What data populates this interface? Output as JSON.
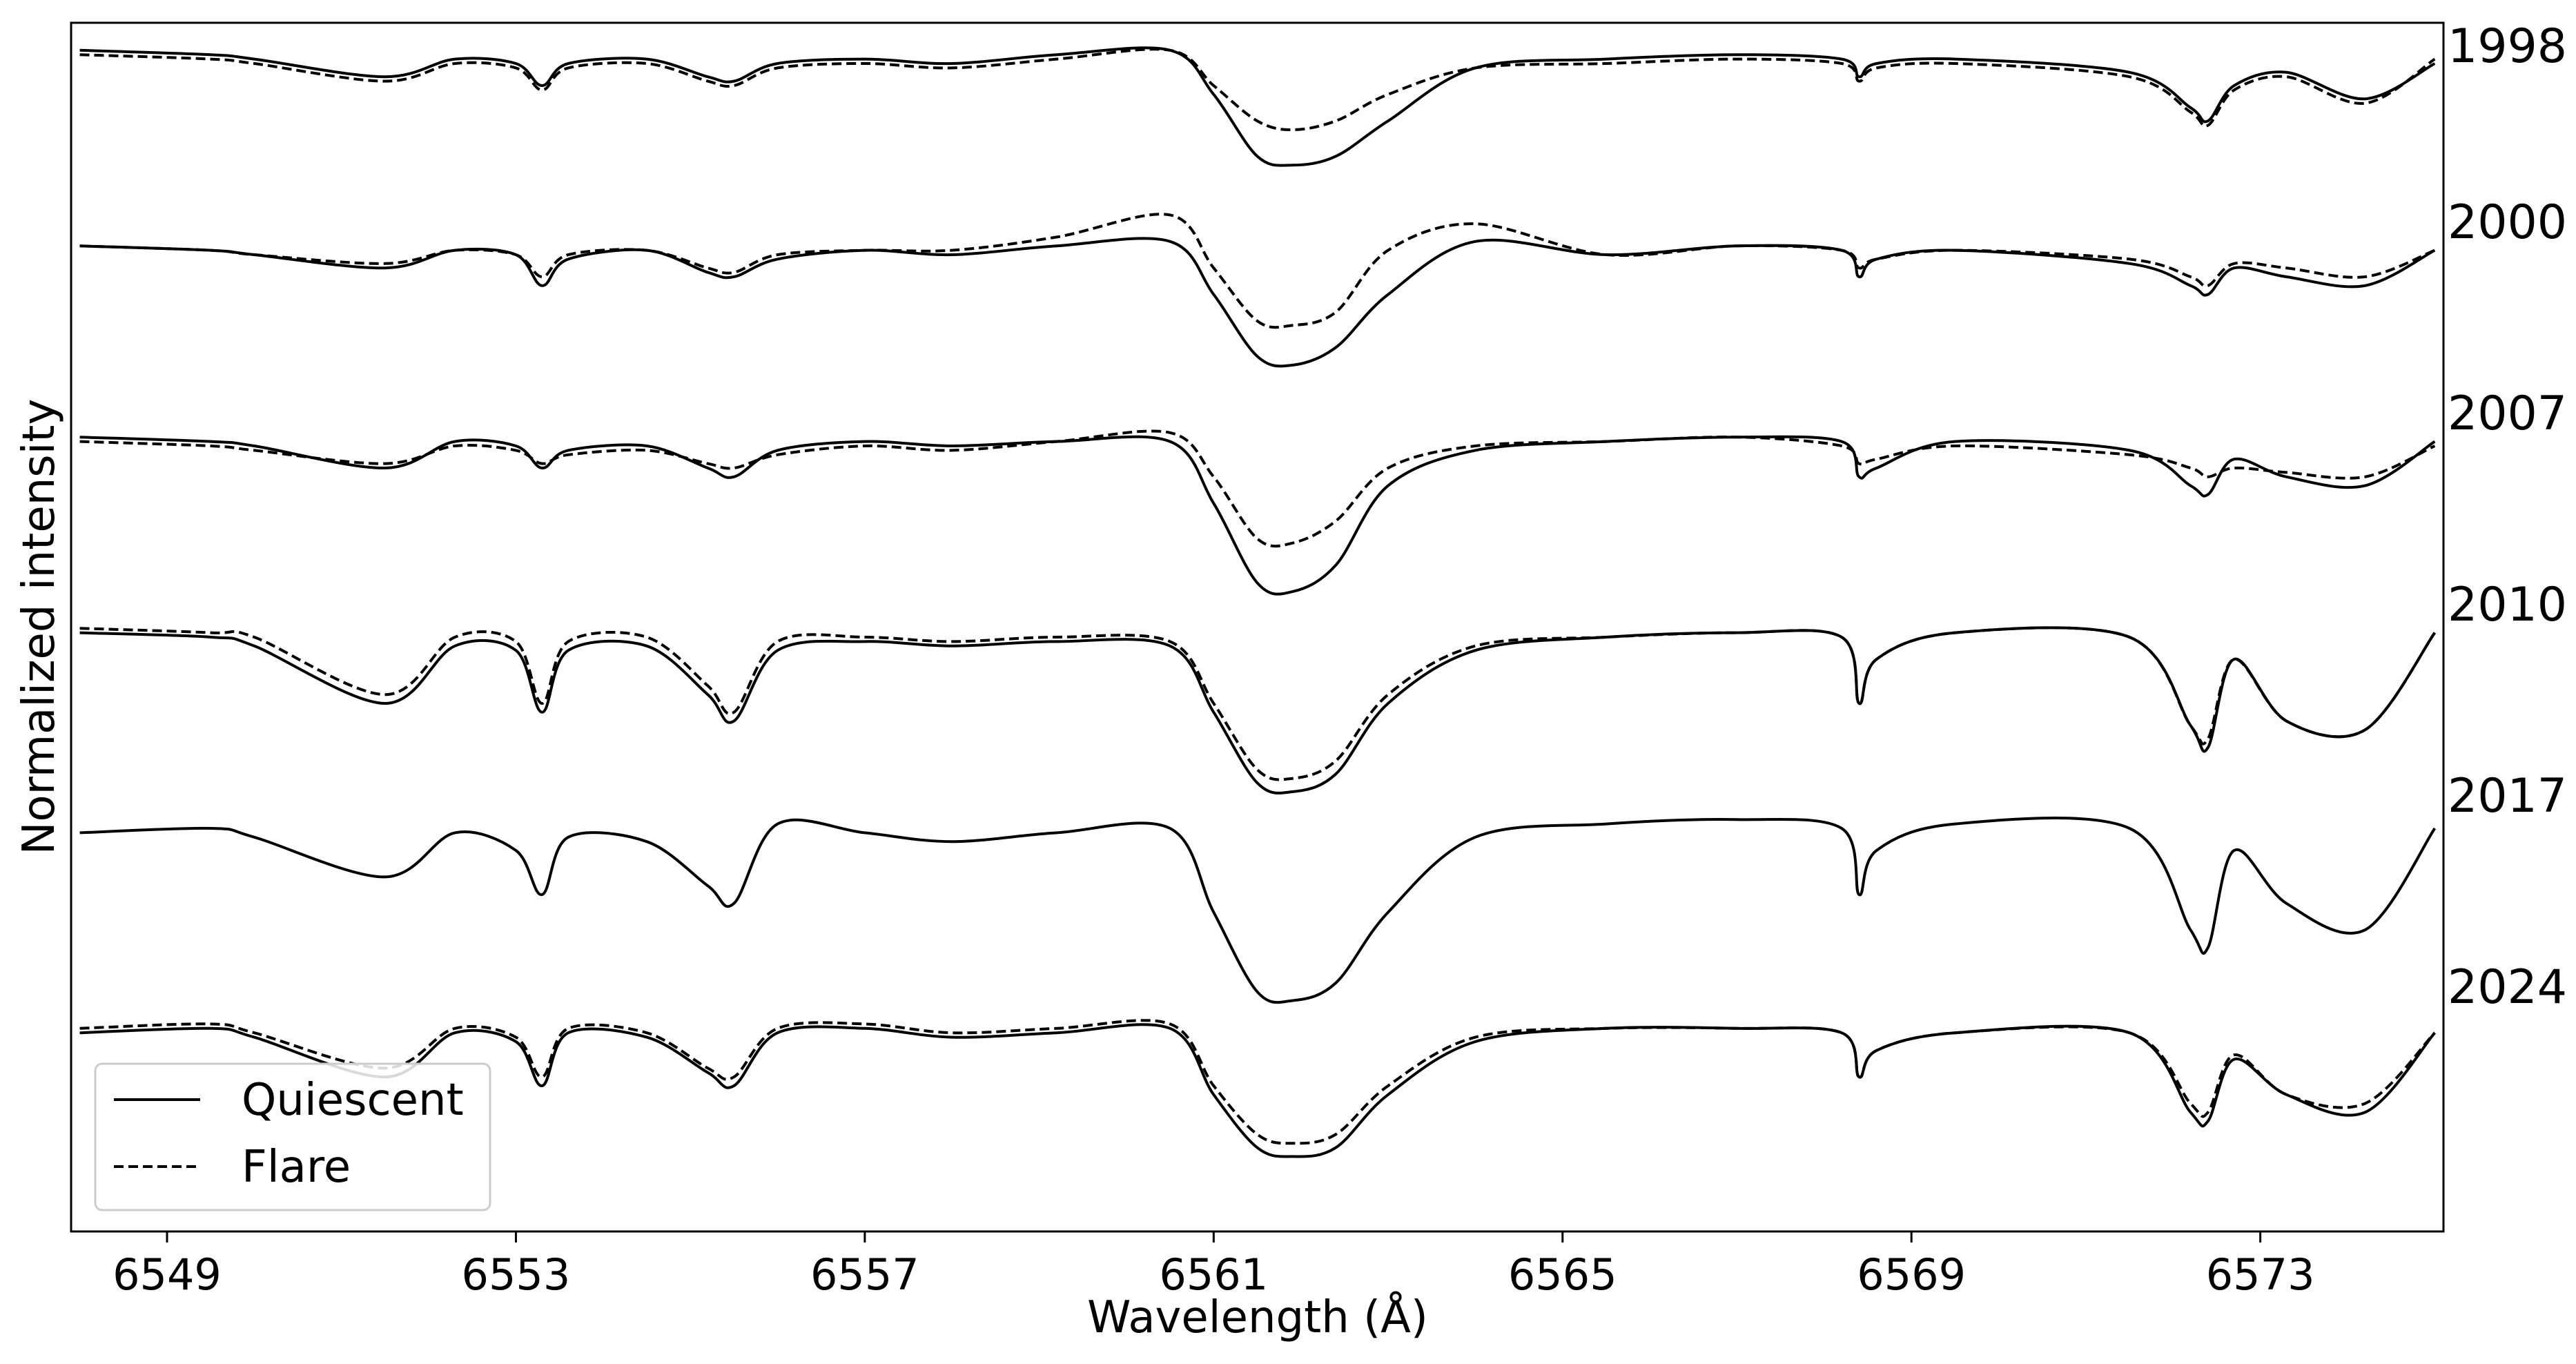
{
  "chart_data": {
    "type": "line",
    "title": "",
    "xlabel": "Wavelength (Å)",
    "ylabel": "Normalized intensity",
    "xlim": [
      6547.9,
      6575.1
    ],
    "xticks": [
      6549,
      6553,
      6557,
      6561,
      6565,
      6569,
      6573
    ],
    "y_ticks_shown": false,
    "grid": false,
    "legend": {
      "position": "bottom-left",
      "entries": [
        {
          "label": "Quiescent",
          "style": "solid"
        },
        {
          "label": "Flare",
          "style": "dashed"
        }
      ]
    },
    "line_color": "#000000",
    "panels": [
      {
        "year": "1998",
        "has_flare": true,
        "quiescent": {
          "x": [
            6548,
            6549.5,
            6550,
            6551.5,
            6552.3,
            6553,
            6553.3,
            6553.6,
            6554.5,
            6555.2,
            6555.5,
            6556,
            6557,
            6558,
            6559.2,
            6560.5,
            6561,
            6561.5,
            6561.9,
            6562.4,
            6563,
            6564,
            6565.5,
            6567,
            6568.2,
            6568.4,
            6568.6,
            6569.5,
            6571.5,
            6572.2,
            6572.4,
            6572.7,
            6573.3,
            6574.2,
            6575
          ],
          "y": [
            0.98,
            0.97,
            0.96,
            0.92,
            0.96,
            0.95,
            0.9,
            0.95,
            0.96,
            0.92,
            0.91,
            0.95,
            0.96,
            0.95,
            0.97,
            0.98,
            0.88,
            0.74,
            0.72,
            0.74,
            0.82,
            0.94,
            0.96,
            0.97,
            0.96,
            0.92,
            0.95,
            0.96,
            0.93,
            0.85,
            0.82,
            0.9,
            0.93,
            0.87,
            0.95
          ]
        },
        "flare": {
          "x": [
            6548,
            6549.5,
            6550,
            6551.5,
            6552.3,
            6553,
            6553.3,
            6553.6,
            6554.5,
            6555.2,
            6555.5,
            6556,
            6557,
            6558,
            6559.2,
            6560.5,
            6561,
            6561.5,
            6561.9,
            6562.4,
            6563,
            6564,
            6565.5,
            6567,
            6568.2,
            6568.4,
            6568.6,
            6569.5,
            6571.5,
            6572.2,
            6572.4,
            6572.7,
            6573.3,
            6574.2,
            6575
          ],
          "y": [
            0.97,
            0.96,
            0.95,
            0.91,
            0.95,
            0.94,
            0.89,
            0.94,
            0.95,
            0.91,
            0.9,
            0.94,
            0.95,
            0.94,
            0.96,
            0.98,
            0.9,
            0.82,
            0.8,
            0.82,
            0.88,
            0.94,
            0.95,
            0.96,
            0.95,
            0.91,
            0.94,
            0.95,
            0.92,
            0.84,
            0.81,
            0.89,
            0.92,
            0.86,
            0.96
          ]
        }
      },
      {
        "year": "2000",
        "has_flare": true,
        "quiescent": {
          "x": [
            6548,
            6549.5,
            6550,
            6551.5,
            6552.3,
            6553,
            6553.3,
            6553.6,
            6554.5,
            6555.2,
            6555.5,
            6556,
            6557,
            6558,
            6559.2,
            6560.5,
            6561,
            6561.5,
            6561.9,
            6562.4,
            6563,
            6564,
            6565.5,
            6567,
            6568.2,
            6568.4,
            6568.6,
            6569.5,
            6571.5,
            6572.2,
            6572.4,
            6572.7,
            6573.3,
            6574.2,
            6575
          ],
          "y": [
            0.97,
            0.96,
            0.95,
            0.92,
            0.96,
            0.95,
            0.88,
            0.94,
            0.96,
            0.91,
            0.9,
            0.94,
            0.96,
            0.95,
            0.97,
            0.98,
            0.86,
            0.72,
            0.7,
            0.74,
            0.86,
            0.98,
            0.95,
            0.97,
            0.96,
            0.9,
            0.94,
            0.96,
            0.93,
            0.88,
            0.86,
            0.92,
            0.9,
            0.88,
            0.96
          ]
        },
        "flare": {
          "x": [
            6548,
            6549.5,
            6550,
            6551.5,
            6552.3,
            6553,
            6553.3,
            6553.6,
            6554.5,
            6555.2,
            6555.5,
            6556,
            6557,
            6558,
            6559.2,
            6560.5,
            6561,
            6561.5,
            6561.9,
            6562.4,
            6563,
            6564,
            6565.5,
            6567,
            6568.2,
            6568.4,
            6568.6,
            6569.5,
            6571.5,
            6572.2,
            6572.4,
            6572.7,
            6573.3,
            6574.2,
            6575
          ],
          "y": [
            0.97,
            0.96,
            0.95,
            0.93,
            0.96,
            0.95,
            0.9,
            0.95,
            0.96,
            0.92,
            0.91,
            0.95,
            0.96,
            0.96,
            0.99,
            1.04,
            0.92,
            0.8,
            0.79,
            0.82,
            0.96,
            1.02,
            0.95,
            0.97,
            0.96,
            0.92,
            0.94,
            0.96,
            0.94,
            0.9,
            0.88,
            0.93,
            0.92,
            0.9,
            0.96
          ]
        }
      },
      {
        "year": "2007",
        "has_flare": true,
        "quiescent": {
          "x": [
            6548,
            6549.5,
            6550,
            6551.5,
            6552.3,
            6553,
            6553.3,
            6553.6,
            6554.5,
            6555.2,
            6555.5,
            6556,
            6557,
            6558,
            6559.2,
            6560.5,
            6561,
            6561.5,
            6561.9,
            6562.4,
            6563,
            6564,
            6565.5,
            6567,
            6568.2,
            6568.4,
            6568.6,
            6569.5,
            6571.5,
            6572.2,
            6572.4,
            6572.7,
            6573.3,
            6574.2,
            6575
          ],
          "y": [
            0.97,
            0.96,
            0.95,
            0.9,
            0.96,
            0.95,
            0.9,
            0.94,
            0.95,
            0.9,
            0.88,
            0.94,
            0.96,
            0.95,
            0.96,
            0.96,
            0.82,
            0.64,
            0.62,
            0.68,
            0.86,
            0.94,
            0.96,
            0.97,
            0.96,
            0.88,
            0.9,
            0.96,
            0.94,
            0.86,
            0.84,
            0.92,
            0.88,
            0.86,
            0.96
          ]
        },
        "flare": {
          "x": [
            6548,
            6549.5,
            6550,
            6551.5,
            6552.3,
            6553,
            6553.3,
            6553.6,
            6554.5,
            6555.2,
            6555.5,
            6556,
            6557,
            6558,
            6559.2,
            6560.5,
            6561,
            6561.5,
            6561.9,
            6562.4,
            6563,
            6564,
            6565.5,
            6567,
            6568.2,
            6568.4,
            6568.6,
            6569.5,
            6571.5,
            6572.2,
            6572.4,
            6572.7,
            6573.3,
            6574.2,
            6575
          ],
          "y": [
            0.96,
            0.95,
            0.94,
            0.91,
            0.95,
            0.94,
            0.91,
            0.93,
            0.94,
            0.91,
            0.9,
            0.93,
            0.95,
            0.94,
            0.96,
            0.98,
            0.88,
            0.74,
            0.73,
            0.78,
            0.9,
            0.95,
            0.96,
            0.97,
            0.95,
            0.91,
            0.92,
            0.95,
            0.93,
            0.9,
            0.88,
            0.9,
            0.89,
            0.88,
            0.95
          ]
        }
      },
      {
        "year": "2010",
        "has_flare": true,
        "quiescent": {
          "x": [
            6548,
            6549.5,
            6550,
            6551.5,
            6552.3,
            6553,
            6553.3,
            6553.6,
            6554.5,
            6555.2,
            6555.5,
            6556,
            6557,
            6558,
            6559.2,
            6560.5,
            6561,
            6561.5,
            6561.9,
            6562.4,
            6563,
            6564,
            6565.5,
            6567,
            6568.2,
            6568.4,
            6568.6,
            6569.5,
            6571.5,
            6572.2,
            6572.4,
            6572.7,
            6573.3,
            6574.2,
            6575
          ],
          "y": [
            0.96,
            0.95,
            0.93,
            0.8,
            0.93,
            0.92,
            0.78,
            0.92,
            0.93,
            0.82,
            0.76,
            0.92,
            0.94,
            0.93,
            0.94,
            0.93,
            0.78,
            0.62,
            0.6,
            0.64,
            0.8,
            0.92,
            0.95,
            0.96,
            0.95,
            0.8,
            0.9,
            0.96,
            0.95,
            0.75,
            0.7,
            0.9,
            0.76,
            0.74,
            0.96
          ]
        },
        "flare": {
          "x": [
            6548,
            6549.5,
            6550,
            6551.5,
            6552.3,
            6553,
            6553.3,
            6553.6,
            6554.5,
            6555.2,
            6555.5,
            6556,
            6557,
            6558,
            6559.2,
            6560.5,
            6561,
            6561.5,
            6561.9,
            6562.4,
            6563,
            6564,
            6565.5,
            6567,
            6568.2,
            6568.4,
            6568.6,
            6569.5,
            6571.5,
            6572.2,
            6572.4,
            6572.7,
            6573.3,
            6574.2,
            6575
          ],
          "y": [
            0.97,
            0.96,
            0.95,
            0.82,
            0.95,
            0.94,
            0.8,
            0.94,
            0.95,
            0.84,
            0.78,
            0.94,
            0.95,
            0.94,
            0.95,
            0.94,
            0.8,
            0.65,
            0.63,
            0.67,
            0.82,
            0.93,
            0.95,
            0.96,
            0.95,
            0.8,
            0.9,
            0.96,
            0.95,
            0.75,
            0.72,
            0.9,
            0.76,
            0.74,
            0.96
          ]
        }
      },
      {
        "year": "2017",
        "has_flare": false,
        "quiescent": {
          "x": [
            6548,
            6549.5,
            6550,
            6551.5,
            6552.3,
            6553,
            6553.3,
            6553.6,
            6554.5,
            6555.2,
            6555.5,
            6556,
            6557,
            6558,
            6559.2,
            6560.5,
            6561,
            6561.5,
            6561.9,
            6562.4,
            6563,
            6564,
            6565.5,
            6567,
            6568.2,
            6568.4,
            6568.6,
            6569.5,
            6571.5,
            6572.2,
            6572.4,
            6572.7,
            6573.3,
            6574.2,
            6575
          ],
          "y": [
            0.94,
            0.95,
            0.93,
            0.84,
            0.94,
            0.9,
            0.8,
            0.93,
            0.92,
            0.82,
            0.78,
            0.96,
            0.94,
            0.92,
            0.94,
            0.95,
            0.76,
            0.58,
            0.56,
            0.6,
            0.76,
            0.93,
            0.96,
            0.97,
            0.95,
            0.8,
            0.9,
            0.96,
            0.95,
            0.72,
            0.68,
            0.9,
            0.78,
            0.72,
            0.95
          ]
        },
        "flare": null
      },
      {
        "year": "2024",
        "has_flare": true,
        "quiescent": {
          "x": [
            6548,
            6549.5,
            6550,
            6551.5,
            6552.3,
            6553,
            6553.3,
            6553.6,
            6554.5,
            6555.2,
            6555.5,
            6556,
            6557,
            6558,
            6559.2,
            6560.5,
            6561,
            6561.5,
            6561.9,
            6562.4,
            6563,
            6564,
            6565.5,
            6567,
            6568.2,
            6568.4,
            6568.6,
            6569.5,
            6571.5,
            6572.2,
            6572.4,
            6572.7,
            6573.3,
            6574.2,
            6575
          ],
          "y": [
            0.92,
            0.93,
            0.91,
            0.82,
            0.92,
            0.9,
            0.8,
            0.92,
            0.91,
            0.83,
            0.8,
            0.92,
            0.93,
            0.91,
            0.92,
            0.93,
            0.78,
            0.66,
            0.64,
            0.66,
            0.78,
            0.9,
            0.93,
            0.93,
            0.92,
            0.82,
            0.88,
            0.92,
            0.92,
            0.74,
            0.72,
            0.86,
            0.78,
            0.74,
            0.92
          ]
        },
        "flare": {
          "x": [
            6548,
            6549.5,
            6550,
            6551.5,
            6552.3,
            6553,
            6553.3,
            6553.6,
            6554.5,
            6555.2,
            6555.5,
            6556,
            6557,
            6558,
            6559.2,
            6560.5,
            6561,
            6561.5,
            6561.9,
            6562.4,
            6563,
            6564,
            6565.5,
            6567,
            6568.2,
            6568.4,
            6568.6,
            6569.5,
            6571.5,
            6572.2,
            6572.4,
            6572.7,
            6573.3,
            6574.2,
            6575
          ],
          "y": [
            0.93,
            0.94,
            0.92,
            0.84,
            0.93,
            0.91,
            0.82,
            0.93,
            0.92,
            0.84,
            0.82,
            0.93,
            0.94,
            0.92,
            0.93,
            0.94,
            0.8,
            0.69,
            0.67,
            0.69,
            0.8,
            0.91,
            0.93,
            0.93,
            0.92,
            0.82,
            0.88,
            0.92,
            0.92,
            0.76,
            0.74,
            0.87,
            0.78,
            0.76,
            0.92
          ]
        }
      }
    ]
  }
}
